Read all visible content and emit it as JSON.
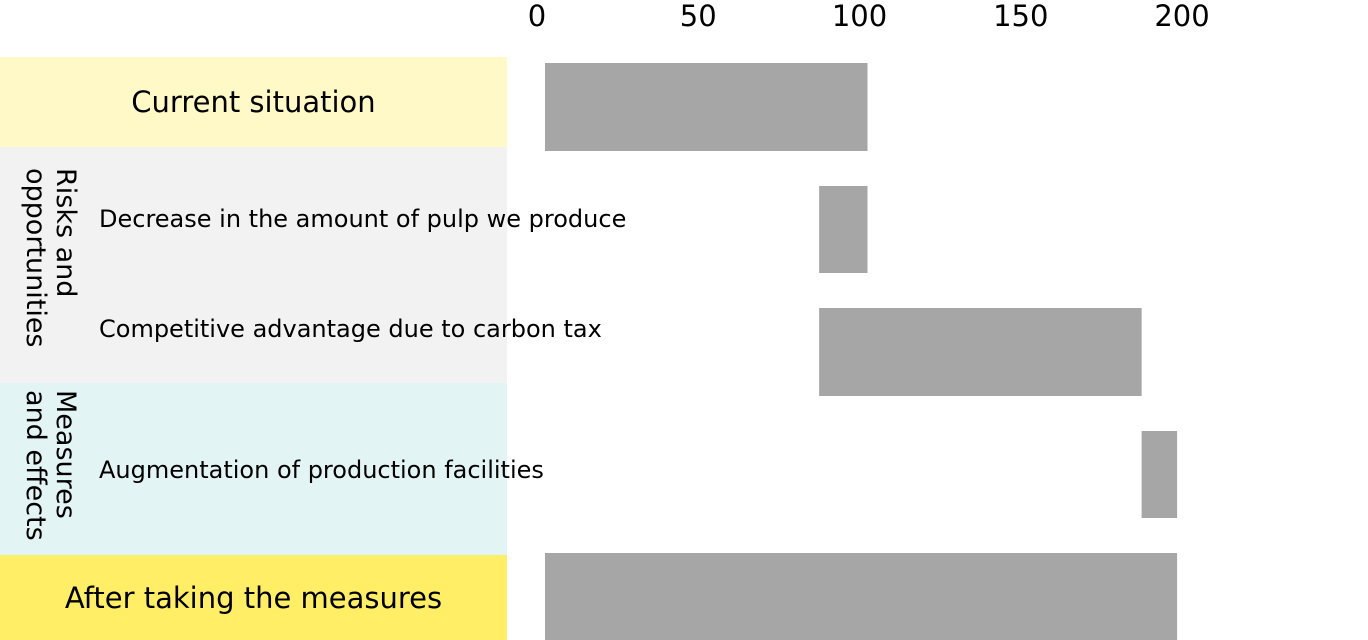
{
  "chart_data": {
    "type": "bar",
    "subtype": "waterfall",
    "orientation": "horizontal",
    "xlim": [
      0,
      200
    ],
    "ticks": [
      0,
      50,
      100,
      150,
      200
    ],
    "bar_color": "#A6A6A6",
    "bars": [
      {
        "label": "Current situation",
        "start": 0,
        "end": 100
      },
      {
        "label": "Decrease in the amount of pulp we produce",
        "start": 85,
        "end": 100
      },
      {
        "label": "Competitive advantage due to carbon tax",
        "start": 85,
        "end": 185
      },
      {
        "label": "Augmentation of production facilities",
        "start": 185,
        "end": 196
      },
      {
        "label": "After taking the measures",
        "start": 0,
        "end": 196
      }
    ],
    "groups": [
      {
        "label": "Risks and\nopportunities",
        "color": "#F2F2F2"
      },
      {
        "label": "Measures\nand effects",
        "color": "#E3F4F4"
      }
    ],
    "band_colors": {
      "current": "#FFF9C8",
      "after": "#FFEE66"
    }
  }
}
